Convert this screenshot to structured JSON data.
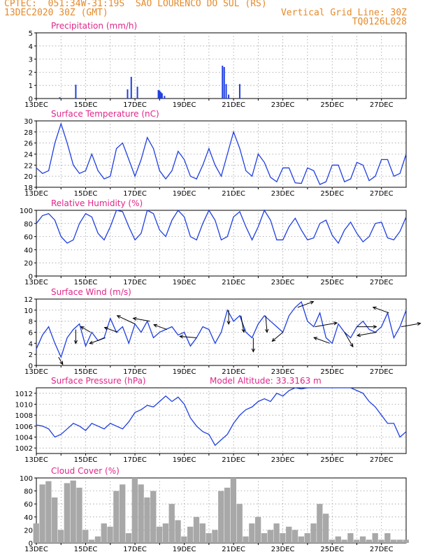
{
  "header": {
    "line1": "CPTEC:  051:34W-31:19S  SAO LOURENCO DO SUL (RS)",
    "line2": "13DEC2020 30Z (GMT)",
    "grid_note": "Vertical Grid Line: 30Z",
    "model_code": "TQ0126L028"
  },
  "colors": {
    "header": "#e58a2a",
    "title": "#e0268a",
    "series": "#1f3fe0",
    "cloud": "#a8a8a8",
    "grid": "#a0a0a0"
  },
  "chart_data": [
    {
      "type": "bar",
      "title": "Precipitation (mm/h)",
      "ylim": [
        0,
        5
      ],
      "yticks": [
        0,
        1,
        2,
        3,
        4,
        5
      ],
      "x_tick_labels": [
        "13DEC",
        "15DEC",
        "17DEC",
        "19DEC",
        "21DEC",
        "23DEC",
        "25DEC",
        "27DEC"
      ],
      "x_units": "days since 13DEC 00Z",
      "points": [
        {
          "x": 0.95,
          "y": 0.1
        },
        {
          "x": 1.6,
          "y": 1.05
        },
        {
          "x": 3.7,
          "y": 0.7
        },
        {
          "x": 3.85,
          "y": 1.65
        },
        {
          "x": 4.1,
          "y": 0.9
        },
        {
          "x": 4.95,
          "y": 0.65
        },
        {
          "x": 5.0,
          "y": 0.6
        },
        {
          "x": 5.05,
          "y": 0.5
        },
        {
          "x": 5.1,
          "y": 0.4
        },
        {
          "x": 5.2,
          "y": 0.2
        },
        {
          "x": 7.55,
          "y": 2.5
        },
        {
          "x": 7.62,
          "y": 2.4
        },
        {
          "x": 7.7,
          "y": 1.1
        },
        {
          "x": 7.8,
          "y": 0.3
        },
        {
          "x": 8.25,
          "y": 1.1
        }
      ]
    },
    {
      "type": "line",
      "title": "Surface Temperature (nC)",
      "ylim": [
        18,
        30
      ],
      "yticks": [
        18,
        20,
        22,
        24,
        26,
        28,
        30
      ],
      "x_tick_labels": [
        "13DEC",
        "15DEC",
        "17DEC",
        "19DEC",
        "21DEC",
        "23DEC",
        "25DEC",
        "27DEC"
      ],
      "x": [
        0,
        0.25,
        0.5,
        0.75,
        1,
        1.25,
        1.5,
        1.75,
        2,
        2.25,
        2.5,
        2.75,
        3,
        3.25,
        3.5,
        3.75,
        4,
        4.25,
        4.5,
        4.75,
        5,
        5.25,
        5.5,
        5.75,
        6,
        6.25,
        6.5,
        6.75,
        7,
        7.25,
        7.5,
        7.75,
        8,
        8.25,
        8.5,
        8.75,
        9,
        9.25,
        9.5,
        9.75,
        10,
        10.25,
        10.5,
        10.75,
        11,
        11.25,
        11.5,
        11.75,
        12,
        12.25,
        12.5,
        12.75,
        13,
        13.25,
        13.5,
        13.75,
        14,
        14.25,
        14.5,
        14.75,
        15
      ],
      "y": [
        21.5,
        20.5,
        21,
        26,
        29.5,
        26,
        22,
        20.5,
        21,
        24,
        21,
        19.5,
        20,
        25,
        26,
        23,
        20,
        23,
        27,
        25,
        21,
        19.5,
        21,
        24.5,
        23,
        20,
        19.5,
        22,
        25,
        22,
        20,
        24,
        28,
        25,
        21,
        20,
        24,
        22.5,
        19.8,
        19,
        21.5,
        21.5,
        18.8,
        18.7,
        21.5,
        21,
        18.5,
        19,
        22,
        22,
        19,
        19.5,
        22.5,
        22,
        19.2,
        20,
        23,
        23,
        20,
        20.5,
        24
      ]
    },
    {
      "type": "line",
      "title": "Relative Humidity (%)",
      "ylim": [
        0,
        100
      ],
      "yticks": [
        0,
        20,
        40,
        60,
        80,
        100
      ],
      "x_tick_labels": [
        "13DEC",
        "15DEC",
        "17DEC",
        "19DEC",
        "21DEC",
        "23DEC",
        "25DEC",
        "27DEC"
      ],
      "x": [
        0,
        0.25,
        0.5,
        0.75,
        1,
        1.25,
        1.5,
        1.75,
        2,
        2.25,
        2.5,
        2.75,
        3,
        3.25,
        3.5,
        3.75,
        4,
        4.25,
        4.5,
        4.75,
        5,
        5.25,
        5.5,
        5.75,
        6,
        6.25,
        6.5,
        6.75,
        7,
        7.25,
        7.5,
        7.75,
        8,
        8.25,
        8.5,
        8.75,
        9,
        9.25,
        9.5,
        9.75,
        10,
        10.25,
        10.5,
        10.75,
        11,
        11.25,
        11.5,
        11.75,
        12,
        12.25,
        12.5,
        12.75,
        13,
        13.25,
        13.5,
        13.75,
        14,
        14.25,
        14.5,
        14.75,
        15
      ],
      "y": [
        80,
        92,
        95,
        85,
        60,
        50,
        55,
        80,
        95,
        90,
        65,
        55,
        75,
        100,
        98,
        75,
        55,
        65,
        100,
        95,
        70,
        60,
        85,
        100,
        90,
        60,
        55,
        80,
        100,
        85,
        55,
        60,
        90,
        98,
        75,
        55,
        75,
        100,
        85,
        55,
        55,
        75,
        88,
        70,
        55,
        58,
        80,
        85,
        62,
        50,
        70,
        82,
        65,
        52,
        60,
        80,
        82,
        58,
        55,
        68,
        90
      ]
    },
    {
      "type": "line",
      "title": "Surface Wind (m/s)",
      "ylim": [
        0,
        12
      ],
      "yticks": [
        0,
        2,
        4,
        6,
        8,
        10,
        12
      ],
      "x_tick_labels": [
        "13DEC",
        "15DEC",
        "17DEC",
        "19DEC",
        "21DEC",
        "23DEC",
        "25DEC",
        "27DEC"
      ],
      "x": [
        0,
        0.25,
        0.5,
        0.75,
        1,
        1.25,
        1.5,
        1.75,
        2,
        2.25,
        2.5,
        2.75,
        3,
        3.25,
        3.5,
        3.75,
        4,
        4.25,
        4.5,
        4.75,
        5,
        5.25,
        5.5,
        5.75,
        6,
        6.25,
        6.5,
        6.75,
        7,
        7.25,
        7.5,
        7.75,
        8,
        8.25,
        8.5,
        8.75,
        9,
        9.25,
        9.5,
        9.75,
        10,
        10.25,
        10.5,
        10.75,
        11,
        11.25,
        11.5,
        11.75,
        12,
        12.25,
        12.5,
        12.75,
        13,
        13.25,
        13.5,
        13.75,
        14,
        14.25,
        14.5,
        14.75,
        15
      ],
      "y": [
        3,
        5.5,
        7,
        4,
        1.5,
        5,
        6.5,
        7.5,
        3.5,
        6,
        4.5,
        5,
        8.5,
        6,
        7,
        4,
        7.5,
        6,
        8,
        5,
        6,
        6.5,
        7,
        5.5,
        6,
        3.5,
        5,
        7,
        6.5,
        4,
        6,
        10,
        8,
        9,
        6,
        5,
        7.5,
        9,
        8,
        7,
        6,
        9,
        10.5,
        11.5,
        8,
        7,
        9.5,
        5,
        4,
        7.5,
        6,
        5,
        7,
        8,
        6.5,
        6,
        7,
        9.5,
        5,
        7,
        10
      ],
      "arrows": [
        {
          "x": 0.9,
          "s": 3,
          "a": 300
        },
        {
          "x": 1.6,
          "s": 5,
          "a": 270
        },
        {
          "x": 2.2,
          "s": 4,
          "a": 150
        },
        {
          "x": 2.8,
          "s": 6,
          "a": 200
        },
        {
          "x": 3.3,
          "s": 5,
          "a": 160
        },
        {
          "x": 4.0,
          "s": 7,
          "a": 155
        },
        {
          "x": 4.6,
          "s": 6,
          "a": 170
        },
        {
          "x": 5.3,
          "s": 5,
          "a": 160
        },
        {
          "x": 6.5,
          "s": 6,
          "a": 175
        },
        {
          "x": 7.8,
          "s": 5,
          "a": 270
        },
        {
          "x": 8.3,
          "s": 6,
          "a": 280
        },
        {
          "x": 8.8,
          "s": 5,
          "a": 270
        },
        {
          "x": 9.3,
          "s": 6,
          "a": 275
        },
        {
          "x": 10.0,
          "s": 5,
          "a": 220
        },
        {
          "x": 10.6,
          "s": 6,
          "a": 20
        },
        {
          "x": 11.3,
          "s": 8,
          "a": 10
        },
        {
          "x": 11.9,
          "s": 6,
          "a": 160
        },
        {
          "x": 12.5,
          "s": 6,
          "a": 300
        },
        {
          "x": 13.0,
          "s": 7,
          "a": 0
        },
        {
          "x": 13.8,
          "s": 7,
          "a": 190
        },
        {
          "x": 14.3,
          "s": 6,
          "a": 160
        },
        {
          "x": 14.8,
          "s": 7,
          "a": 10
        }
      ]
    },
    {
      "type": "line",
      "title": "Surface Pressure (hPa)",
      "subtitle": "Model Altitude: 33.3163 m",
      "ylim": [
        1001,
        1013
      ],
      "yticks": [
        1002,
        1004,
        1006,
        1008,
        1010,
        1012
      ],
      "x_tick_labels": [
        "13DEC",
        "15DEC",
        "17DEC",
        "19DEC",
        "21DEC",
        "23DEC",
        "25DEC",
        "27DEC"
      ],
      "x": [
        0,
        0.25,
        0.5,
        0.75,
        1,
        1.25,
        1.5,
        1.75,
        2,
        2.25,
        2.5,
        2.75,
        3,
        3.25,
        3.5,
        3.75,
        4,
        4.25,
        4.5,
        4.75,
        5,
        5.25,
        5.5,
        5.75,
        6,
        6.25,
        6.5,
        6.75,
        7,
        7.25,
        7.5,
        7.75,
        8,
        8.25,
        8.5,
        8.75,
        9,
        9.25,
        9.5,
        9.75,
        10,
        10.25,
        10.5,
        10.75,
        11,
        11.25,
        11.5,
        11.75,
        12,
        12.25,
        12.5,
        12.75,
        13,
        13.25,
        13.5,
        13.75,
        14,
        14.25,
        14.5,
        14.75,
        15
      ],
      "y": [
        1006.2,
        1006,
        1005.5,
        1004,
        1004.5,
        1005.5,
        1006.5,
        1006,
        1005.2,
        1006.5,
        1006,
        1005.5,
        1006.5,
        1006,
        1005.5,
        1006.8,
        1008.5,
        1009,
        1009.8,
        1009.5,
        1010.5,
        1011.5,
        1010.5,
        1011.3,
        1010,
        1007.5,
        1006,
        1005,
        1004.5,
        1002.5,
        1003.5,
        1004.5,
        1006.5,
        1008,
        1009,
        1009.5,
        1010.5,
        1011,
        1010.5,
        1012,
        1011.5,
        1012.5,
        1013,
        1012.8,
        1013,
        1013,
        1013.2,
        1013.3,
        1013.5,
        1013.3,
        1013.8,
        1013.6,
        1012.5,
        1012,
        1010.5,
        1009.5,
        1008,
        1006.5,
        1006.5,
        1004,
        1005
      ]
    },
    {
      "type": "area",
      "title": "Cloud Cover (%)",
      "ylim": [
        0,
        100
      ],
      "yticks": [
        0,
        20,
        40,
        60,
        80,
        100
      ],
      "x_tick_labels": [
        "13DEC",
        "15DEC",
        "17DEC",
        "19DEC",
        "21DEC",
        "23DEC",
        "25DEC",
        "27DEC"
      ],
      "x": [
        0,
        0.25,
        0.5,
        0.75,
        1,
        1.25,
        1.5,
        1.75,
        2,
        2.25,
        2.5,
        2.75,
        3,
        3.25,
        3.5,
        3.75,
        4,
        4.25,
        4.5,
        4.75,
        5,
        5.25,
        5.5,
        5.75,
        6,
        6.25,
        6.5,
        6.75,
        7,
        7.25,
        7.5,
        7.75,
        8,
        8.25,
        8.5,
        8.75,
        9,
        9.25,
        9.5,
        9.75,
        10,
        10.25,
        10.5,
        10.75,
        11,
        11.25,
        11.5,
        11.75,
        12,
        12.25,
        12.5,
        12.75,
        13,
        13.25,
        13.5,
        13.75,
        14,
        14.25,
        14.5,
        14.75,
        15
      ],
      "y": [
        30,
        90,
        95,
        70,
        20,
        92,
        96,
        85,
        20,
        5,
        10,
        30,
        25,
        80,
        90,
        15,
        100,
        90,
        70,
        80,
        25,
        30,
        60,
        35,
        10,
        25,
        40,
        30,
        15,
        20,
        80,
        85,
        100,
        60,
        10,
        30,
        40,
        15,
        20,
        30,
        15,
        25,
        20,
        10,
        15,
        30,
        60,
        45,
        5,
        10,
        5,
        15,
        5,
        10,
        5,
        15,
        5,
        15,
        5,
        5,
        5
      ]
    }
  ]
}
